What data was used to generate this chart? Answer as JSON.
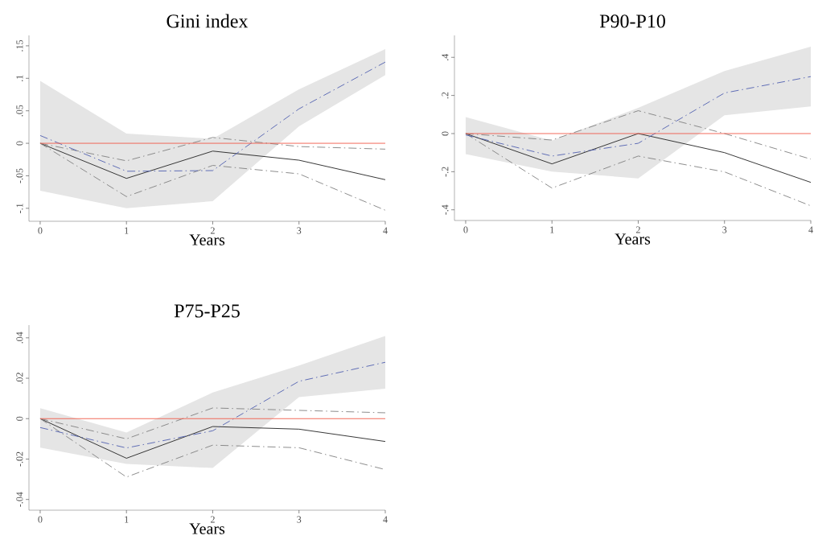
{
  "chart_data": [
    {
      "type": "line",
      "title": "Gini index",
      "xlabel": "Years",
      "x": [
        0,
        1,
        2,
        3,
        4
      ],
      "xlim": [
        -0.13,
        4
      ],
      "xticks": [
        0,
        1,
        2,
        3,
        4
      ],
      "ylim": [
        -0.12,
        0.166
      ],
      "yticks": [
        {
          "value": -0.1,
          "label": "-.1"
        },
        {
          "value": -0.05,
          "label": "-.05"
        },
        0,
        {
          "value": 0.05,
          "label": ".05"
        },
        {
          "value": 0.1,
          "label": ".1"
        },
        {
          "value": 0.15,
          "label": ".15"
        }
      ],
      "series": [
        {
          "color": "#222222",
          "line_style": "solid",
          "values": [
            0,
            -0.054,
            -0.012,
            -0.026,
            -0.056
          ]
        },
        {
          "color": "#808080",
          "line_style": "dashdot",
          "values": [
            0,
            -0.027,
            0.009,
            -0.005,
            -0.009
          ]
        },
        {
          "color": "#808080",
          "line_style": "dashdot",
          "values": [
            0,
            -0.082,
            -0.034,
            -0.047,
            -0.103
          ]
        },
        {
          "color": "#5060b0",
          "line_style": "dashdot",
          "values": [
            0.012,
            -0.043,
            -0.042,
            0.053,
            0.125
          ],
          "lower": [
            -0.073,
            -0.1,
            -0.089,
            0.026,
            0.105
          ],
          "upper": [
            0.096,
            0.015,
            0.007,
            0.083,
            0.145
          ]
        },
        {
          "color": "#f05a4a",
          "line_style": "solid",
          "values": [
            0,
            0,
            0,
            0,
            0
          ]
        }
      ]
    },
    {
      "type": "line",
      "title": "P90-P10",
      "xlabel": "Years",
      "x": [
        0,
        1,
        2,
        3,
        4
      ],
      "xlim": [
        -0.13,
        4
      ],
      "xticks": [
        0,
        1,
        2,
        3,
        4
      ],
      "ylim": [
        -0.456,
        0.515
      ],
      "yticks": [
        {
          "value": -0.4,
          "label": "-.4"
        },
        {
          "value": -0.2,
          "label": "-.2"
        },
        0,
        {
          "value": 0.2,
          "label": ".2"
        },
        {
          "value": 0.4,
          "label": ".4"
        }
      ],
      "series": [
        {
          "color": "#222222",
          "line_style": "solid",
          "values": [
            0,
            -0.159,
            0,
            -0.1,
            -0.256
          ]
        },
        {
          "color": "#808080",
          "line_style": "dashdot",
          "values": [
            0,
            -0.034,
            0.12,
            0,
            -0.134
          ]
        },
        {
          "color": "#808080",
          "line_style": "dashdot",
          "values": [
            0,
            -0.286,
            -0.118,
            -0.201,
            -0.379
          ]
        },
        {
          "color": "#5060b0",
          "line_style": "dashdot",
          "values": [
            -0.007,
            -0.118,
            -0.051,
            0.213,
            0.299
          ],
          "lower": [
            -0.108,
            -0.2,
            -0.235,
            0.096,
            0.142
          ],
          "upper": [
            0.086,
            -0.037,
            0.135,
            0.328,
            0.456
          ]
        },
        {
          "color": "#f05a4a",
          "line_style": "solid",
          "values": [
            0,
            0,
            0,
            0,
            0
          ]
        }
      ]
    },
    {
      "type": "line",
      "title": "P75-P25",
      "xlabel": "Years",
      "x": [
        0,
        1,
        2,
        3,
        4
      ],
      "xlim": [
        -0.13,
        4
      ],
      "xticks": [
        0,
        1,
        2,
        3,
        4
      ],
      "ylim": [
        -0.0453,
        0.0463
      ],
      "yticks": [
        {
          "value": -0.04,
          "label": "-.04"
        },
        {
          "value": -0.02,
          "label": "-.02"
        },
        0,
        {
          "value": 0.02,
          "label": ".02"
        },
        {
          "value": 0.04,
          "label": ".04"
        }
      ],
      "series": [
        {
          "color": "#222222",
          "line_style": "solid",
          "values": [
            0,
            -0.0196,
            -0.0039,
            -0.0052,
            -0.0113
          ]
        },
        {
          "color": "#808080",
          "line_style": "dashdot",
          "values": [
            0,
            -0.01,
            0.0053,
            0.0041,
            0.0029
          ]
        },
        {
          "color": "#808080",
          "line_style": "dashdot",
          "values": [
            0,
            -0.0289,
            -0.0131,
            -0.0144,
            -0.0252
          ]
        },
        {
          "color": "#5060b0",
          "line_style": "dashdot",
          "values": [
            -0.0044,
            -0.0145,
            -0.006,
            0.0185,
            0.0279
          ],
          "lower": [
            -0.0143,
            -0.0224,
            -0.0244,
            0.0107,
            0.0148
          ],
          "upper": [
            0.0052,
            -0.0069,
            0.0129,
            0.0263,
            0.0409
          ]
        },
        {
          "color": "#f05a4a",
          "line_style": "solid",
          "values": [
            0,
            0,
            0,
            0,
            0
          ]
        }
      ]
    }
  ]
}
